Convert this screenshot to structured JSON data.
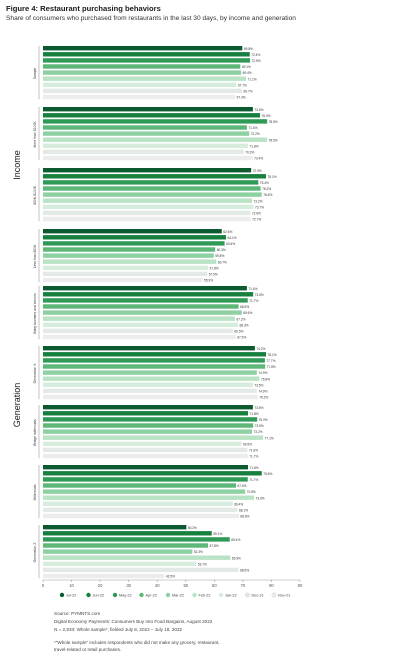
{
  "title": "Figure 4: Restaurant purchasing behaviors",
  "subtitle": "Share of consumers who purchased from restaurants in the last 30 days, by income and generation",
  "colors": {
    "series": [
      "#0b5a30",
      "#17803f",
      "#2e9a56",
      "#5cb778",
      "#8dd0a2",
      "#b9e3c4",
      "#d6ecdc",
      "#e3e9e5",
      "#ececec"
    ]
  },
  "chart_data": {
    "type": "bar",
    "orientation": "horizontal",
    "xlim": [
      0,
      90
    ],
    "x_ticks": [
      "0",
      "10",
      "20",
      "30",
      "40",
      "50",
      "60",
      "70",
      "80",
      "90"
    ],
    "grid": false,
    "legend_position": "bottom",
    "series_names": [
      "Jul-22",
      "Jun-22",
      "May-22",
      "Apr-22",
      "Mar-22",
      "Feb-22",
      "Jan-22",
      "Dec-21",
      "Nov-21"
    ],
    "sections": [
      {
        "label": "",
        "groups": [
          {
            "label": "Sample",
            "values": [
              69.8,
              72.4,
              72.5,
              69.1,
              69.4,
              71.1,
              67.7,
              69.7,
              67.3
            ],
            "value_labels": [
              "69.8%",
              "72.4%",
              "72.5%",
              "69.1%",
              "69.4%",
              "71.1%",
              "67.7%",
              "69.7%",
              "67.3%"
            ]
          }
        ]
      },
      {
        "label": "Income",
        "groups": [
          {
            "label": "More than $100K",
            "values": [
              73.5,
              76.0,
              78.5,
              71.4,
              72.2,
              78.5,
              71.8,
              70.3,
              73.4
            ],
            "value_labels": [
              "73.5%",
              "76.0%",
              "78.5%",
              "71.4%",
              "72.2%",
              "78.5%",
              "71.8%",
              "70.3%",
              "73.4%"
            ]
          },
          {
            "label": "$50K-$100K",
            "values": [
              72.9,
              78.1,
              75.4,
              76.2,
              76.6,
              73.2,
              73.7,
              72.6,
              72.7
            ],
            "value_labels": [
              "72.9%",
              "78.1%",
              "75.4%",
              "76.2%",
              "76.6%",
              "73.2%",
              "73.7%",
              "72.6%",
              "72.7%"
            ]
          },
          {
            "label": "Less than $50K",
            "values": [
              62.6,
              64.1,
              63.6,
              60.3,
              59.8,
              60.7,
              57.8,
              57.5,
              55.9
            ],
            "value_labels": [
              "62.6%",
              "64.1%",
              "63.6%",
              "60.3%",
              "59.8%",
              "60.7%",
              "57.8%",
              "57.5%",
              "55.9%"
            ]
          }
        ]
      },
      {
        "label": "Generation",
        "groups": [
          {
            "label": "Baby boomers and seniors",
            "values": [
              71.4,
              73.6,
              71.7,
              68.5,
              69.6,
              67.2,
              68.3,
              66.5,
              67.5
            ],
            "value_labels": [
              "71.4%",
              "73.6%",
              "71.7%",
              "68.5%",
              "69.6%",
              "67.2%",
              "68.3%",
              "66.5%",
              "67.5%"
            ]
          },
          {
            "label": "Generation X",
            "values": [
              74.2,
              78.1,
              77.7,
              77.8,
              74.9,
              75.8,
              73.5,
              74.9,
              75.2
            ],
            "value_labels": [
              "74.2%",
              "78.1%",
              "77.7%",
              "77.8%",
              "74.9%",
              "75.8%",
              "73.5%",
              "74.9%",
              "75.2%"
            ]
          },
          {
            "label": "Bridge millennials",
            "values": [
              73.5,
              71.8,
              75.0,
              73.6,
              73.2,
              77.1,
              69.5,
              71.6,
              71.7
            ],
            "value_labels": [
              "73.5%",
              "71.8%",
              "75.0%",
              "73.6%",
              "73.2%",
              "77.1%",
              "69.5%",
              "71.6%",
              "71.7%"
            ]
          },
          {
            "label": "Millennials",
            "values": [
              71.8,
              76.6,
              71.7,
              67.6,
              70.8,
              73.9,
              66.4,
              68.1,
              68.6
            ],
            "value_labels": [
              "71.8%",
              "76.6%",
              "71.7%",
              "67.6%",
              "70.8%",
              "73.9%",
              "66.4%",
              "68.1%",
              "68.6%"
            ]
          },
          {
            "label": "Generation Z",
            "values": [
              50.2,
              59.1,
              65.4,
              57.8,
              52.3,
              65.6,
              53.7,
              68.5,
              42.5
            ],
            "value_labels": [
              "50.2%",
              "59.1%",
              "65.4%",
              "57.8%",
              "52.3%",
              "65.6%",
              "53.7%",
              "68.5%",
              "42.5%"
            ]
          }
        ]
      }
    ]
  },
  "footer": {
    "source": "Source: PYMNTS.com",
    "report": "Digital Economy Payments: Consumers Buy Into Food Bargains, August 2022",
    "sample": "N = 2,933: Whole sample*, fielded July 8, 2022 – July 18, 2022",
    "note1": "*\"Whole sample\" includes respondents who did not make any grocery, restaurant,",
    "note2": "travel-related or retail purchases."
  }
}
